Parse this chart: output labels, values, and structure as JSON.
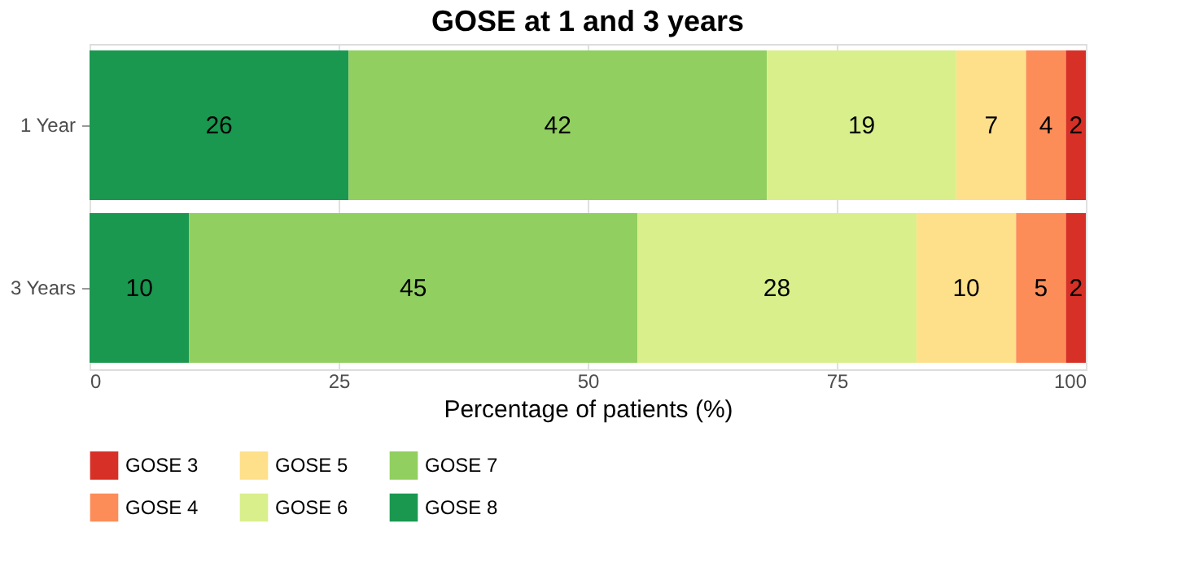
{
  "chart_data": {
    "type": "bar",
    "orientation": "horizontal",
    "stacked": true,
    "title": "GOSE at 1 and 3 years",
    "xlabel": "Percentage of patients (%)",
    "categories": [
      "1 Year",
      "3 Years"
    ],
    "series": [
      {
        "name": "GOSE 8",
        "color": "#1a9850",
        "values": [
          26,
          10
        ]
      },
      {
        "name": "GOSE 7",
        "color": "#91cf60",
        "values": [
          42,
          45
        ]
      },
      {
        "name": "GOSE 6",
        "color": "#d9ef8b",
        "values": [
          19,
          28
        ]
      },
      {
        "name": "GOSE 5",
        "color": "#fee08b",
        "values": [
          7,
          10
        ]
      },
      {
        "name": "GOSE 4",
        "color": "#fc8d59",
        "values": [
          4,
          5
        ]
      },
      {
        "name": "GOSE 3",
        "color": "#d73027",
        "values": [
          2,
          2
        ]
      }
    ],
    "xlim": [
      0,
      100
    ],
    "xticks": [
      0,
      25,
      50,
      75,
      100
    ],
    "grid": "x",
    "legend": "bottom",
    "data_labels": true
  }
}
